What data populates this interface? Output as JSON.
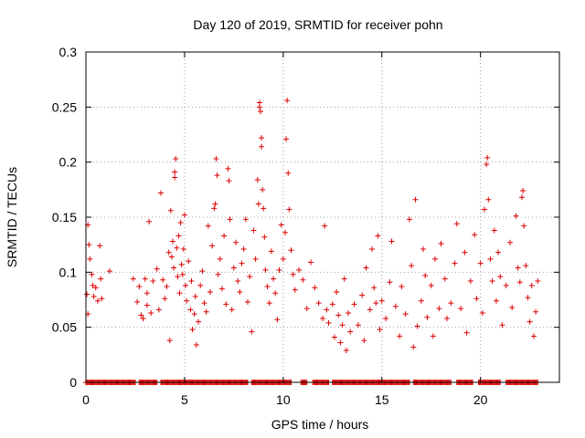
{
  "chart_data": {
    "type": "scatter",
    "title": "Day 120 of 2019, SRMTID for receiver pohn",
    "xlabel": "GPS time / hours",
    "ylabel": "SRMTID / TECUs",
    "xlim": [
      0,
      24
    ],
    "ylim": [
      0,
      0.3
    ],
    "xticks": [
      "0",
      "5",
      "10",
      "15",
      "20"
    ],
    "yticks": [
      "0",
      "0.05",
      "0.1",
      "0.15",
      "0.2",
      "0.25",
      "0.3"
    ],
    "grid": true,
    "marker": "+",
    "color": "#dd0000",
    "series": [
      {
        "name": "SRMTID",
        "note": "dense cluster of points; representative sample read from figure",
        "points": [
          [
            0.05,
            0.08
          ],
          [
            0.1,
            0.062
          ],
          [
            0.1,
            0.143
          ],
          [
            0.15,
            0.125
          ],
          [
            0.2,
            0.112
          ],
          [
            0.3,
            0.098
          ],
          [
            0.35,
            0.088
          ],
          [
            0.4,
            0.078
          ],
          [
            0.5,
            0.086
          ],
          [
            0.6,
            0.074
          ],
          [
            0.7,
            0.124
          ],
          [
            0.75,
            0.094
          ],
          [
            0.8,
            0.076
          ],
          [
            1.2,
            0.101
          ],
          [
            2.4,
            0.094
          ],
          [
            2.6,
            0.073
          ],
          [
            2.7,
            0.087
          ],
          [
            2.8,
            0.061
          ],
          [
            2.9,
            0.058
          ],
          [
            3.0,
            0.094
          ],
          [
            3.1,
            0.07
          ],
          [
            3.1,
            0.081
          ],
          [
            3.2,
            0.146
          ],
          [
            3.3,
            0.063
          ],
          [
            3.4,
            0.092
          ],
          [
            3.6,
            0.103
          ],
          [
            3.7,
            0.066
          ],
          [
            3.8,
            0.172
          ],
          [
            3.9,
            0.093
          ],
          [
            4.0,
            0.076
          ],
          [
            4.1,
            0.087
          ],
          [
            4.2,
            0.118
          ],
          [
            4.25,
            0.038
          ],
          [
            4.3,
            0.156
          ],
          [
            4.35,
            0.114
          ],
          [
            4.4,
            0.128
          ],
          [
            4.45,
            0.104
          ],
          [
            4.5,
            0.186
          ],
          [
            4.5,
            0.191
          ],
          [
            4.55,
            0.203
          ],
          [
            4.6,
            0.122
          ],
          [
            4.65,
            0.096
          ],
          [
            4.7,
            0.133
          ],
          [
            4.75,
            0.081
          ],
          [
            4.8,
            0.145
          ],
          [
            4.85,
            0.107
          ],
          [
            4.9,
            0.098
          ],
          [
            4.95,
            0.121
          ],
          [
            5.0,
            0.152
          ],
          [
            5.05,
            0.088
          ],
          [
            5.1,
            0.074
          ],
          [
            5.2,
            0.11
          ],
          [
            5.3,
            0.066
          ],
          [
            5.35,
            0.092
          ],
          [
            5.4,
            0.048
          ],
          [
            5.5,
            0.062
          ],
          [
            5.55,
            0.078
          ],
          [
            5.6,
            0.034
          ],
          [
            5.7,
            0.055
          ],
          [
            5.8,
            0.088
          ],
          [
            5.9,
            0.101
          ],
          [
            6.0,
            0.072
          ],
          [
            6.1,
            0.064
          ],
          [
            6.2,
            0.142
          ],
          [
            6.3,
            0.082
          ],
          [
            6.4,
            0.124
          ],
          [
            6.5,
            0.158
          ],
          [
            6.55,
            0.162
          ],
          [
            6.6,
            0.203
          ],
          [
            6.65,
            0.188
          ],
          [
            6.7,
            0.098
          ],
          [
            6.8,
            0.112
          ],
          [
            6.9,
            0.085
          ],
          [
            7.0,
            0.133
          ],
          [
            7.1,
            0.071
          ],
          [
            7.2,
            0.194
          ],
          [
            7.25,
            0.183
          ],
          [
            7.3,
            0.148
          ],
          [
            7.4,
            0.066
          ],
          [
            7.5,
            0.104
          ],
          [
            7.6,
            0.127
          ],
          [
            7.7,
            0.092
          ],
          [
            7.8,
            0.082
          ],
          [
            7.9,
            0.108
          ],
          [
            8.0,
            0.121
          ],
          [
            8.1,
            0.148
          ],
          [
            8.2,
            0.073
          ],
          [
            8.3,
            0.096
          ],
          [
            8.4,
            0.046
          ],
          [
            8.5,
            0.138
          ],
          [
            8.6,
            0.112
          ],
          [
            8.7,
            0.184
          ],
          [
            8.75,
            0.162
          ],
          [
            8.8,
            0.25
          ],
          [
            8.8,
            0.254
          ],
          [
            8.85,
            0.246
          ],
          [
            8.9,
            0.222
          ],
          [
            8.9,
            0.214
          ],
          [
            8.95,
            0.175
          ],
          [
            9.0,
            0.158
          ],
          [
            9.05,
            0.132
          ],
          [
            9.1,
            0.102
          ],
          [
            9.2,
            0.087
          ],
          [
            9.3,
            0.072
          ],
          [
            9.4,
            0.119
          ],
          [
            9.5,
            0.094
          ],
          [
            9.6,
            0.081
          ],
          [
            9.7,
            0.057
          ],
          [
            9.8,
            0.102
          ],
          [
            9.9,
            0.143
          ],
          [
            10.0,
            0.112
          ],
          [
            10.1,
            0.136
          ],
          [
            10.15,
            0.221
          ],
          [
            10.2,
            0.256
          ],
          [
            10.25,
            0.19
          ],
          [
            10.3,
            0.157
          ],
          [
            10.4,
            0.12
          ],
          [
            10.5,
            0.098
          ],
          [
            10.6,
            0.084
          ],
          [
            10.8,
            0.102
          ],
          [
            11.0,
            0.093
          ],
          [
            11.2,
            0.067
          ],
          [
            11.4,
            0.109
          ],
          [
            11.6,
            0.086
          ],
          [
            11.8,
            0.072
          ],
          [
            12.0,
            0.058
          ],
          [
            12.1,
            0.142
          ],
          [
            12.2,
            0.066
          ],
          [
            12.3,
            0.054
          ],
          [
            12.5,
            0.071
          ],
          [
            12.6,
            0.041
          ],
          [
            12.7,
            0.082
          ],
          [
            12.8,
            0.061
          ],
          [
            12.9,
            0.036
          ],
          [
            13.0,
            0.052
          ],
          [
            13.1,
            0.094
          ],
          [
            13.2,
            0.029
          ],
          [
            13.3,
            0.063
          ],
          [
            13.4,
            0.046
          ],
          [
            13.6,
            0.071
          ],
          [
            13.8,
            0.052
          ],
          [
            14.0,
            0.079
          ],
          [
            14.1,
            0.038
          ],
          [
            14.2,
            0.104
          ],
          [
            14.4,
            0.066
          ],
          [
            14.5,
            0.121
          ],
          [
            14.6,
            0.086
          ],
          [
            14.7,
            0.072
          ],
          [
            14.8,
            0.133
          ],
          [
            14.9,
            0.048
          ],
          [
            15.0,
            0.074
          ],
          [
            15.2,
            0.058
          ],
          [
            15.4,
            0.091
          ],
          [
            15.5,
            0.128
          ],
          [
            15.7,
            0.069
          ],
          [
            15.9,
            0.042
          ],
          [
            16.0,
            0.087
          ],
          [
            16.2,
            0.062
          ],
          [
            16.4,
            0.148
          ],
          [
            16.5,
            0.106
          ],
          [
            16.6,
            0.032
          ],
          [
            16.7,
            0.166
          ],
          [
            16.8,
            0.051
          ],
          [
            17.0,
            0.074
          ],
          [
            17.1,
            0.121
          ],
          [
            17.2,
            0.097
          ],
          [
            17.3,
            0.059
          ],
          [
            17.5,
            0.088
          ],
          [
            17.6,
            0.042
          ],
          [
            17.7,
            0.112
          ],
          [
            17.9,
            0.067
          ],
          [
            18.0,
            0.126
          ],
          [
            18.2,
            0.094
          ],
          [
            18.3,
            0.058
          ],
          [
            18.5,
            0.072
          ],
          [
            18.7,
            0.108
          ],
          [
            18.8,
            0.144
          ],
          [
            19.0,
            0.067
          ],
          [
            19.2,
            0.118
          ],
          [
            19.3,
            0.045
          ],
          [
            19.5,
            0.092
          ],
          [
            19.7,
            0.134
          ],
          [
            19.8,
            0.076
          ],
          [
            20.0,
            0.108
          ],
          [
            20.1,
            0.063
          ],
          [
            20.2,
            0.157
          ],
          [
            20.3,
            0.198
          ],
          [
            20.35,
            0.204
          ],
          [
            20.4,
            0.166
          ],
          [
            20.5,
            0.112
          ],
          [
            20.6,
            0.092
          ],
          [
            20.7,
            0.138
          ],
          [
            20.8,
            0.074
          ],
          [
            20.9,
            0.118
          ],
          [
            21.0,
            0.096
          ],
          [
            21.1,
            0.052
          ],
          [
            21.3,
            0.088
          ],
          [
            21.5,
            0.127
          ],
          [
            21.6,
            0.068
          ],
          [
            21.8,
            0.151
          ],
          [
            21.9,
            0.104
          ],
          [
            22.0,
            0.091
          ],
          [
            22.1,
            0.168
          ],
          [
            22.15,
            0.174
          ],
          [
            22.2,
            0.142
          ],
          [
            22.3,
            0.106
          ],
          [
            22.4,
            0.077
          ],
          [
            22.5,
            0.055
          ],
          [
            22.6,
            0.088
          ],
          [
            22.7,
            0.042
          ],
          [
            22.8,
            0.064
          ],
          [
            22.9,
            0.092
          ]
        ]
      }
    ],
    "zero_baseline": "dense line of markers at y = 0 from x = 0 to about 22.9 with gaps",
    "zero_segments": [
      [
        0.0,
        2.5
      ],
      [
        2.7,
        3.6
      ],
      [
        3.8,
        8.2
      ],
      [
        8.4,
        10.4
      ],
      [
        10.9,
        11.2
      ],
      [
        11.5,
        12.3
      ],
      [
        12.5,
        16.4
      ],
      [
        16.6,
        18.5
      ],
      [
        18.8,
        19.6
      ],
      [
        19.9,
        21.0
      ],
      [
        21.3,
        22.9
      ]
    ]
  }
}
